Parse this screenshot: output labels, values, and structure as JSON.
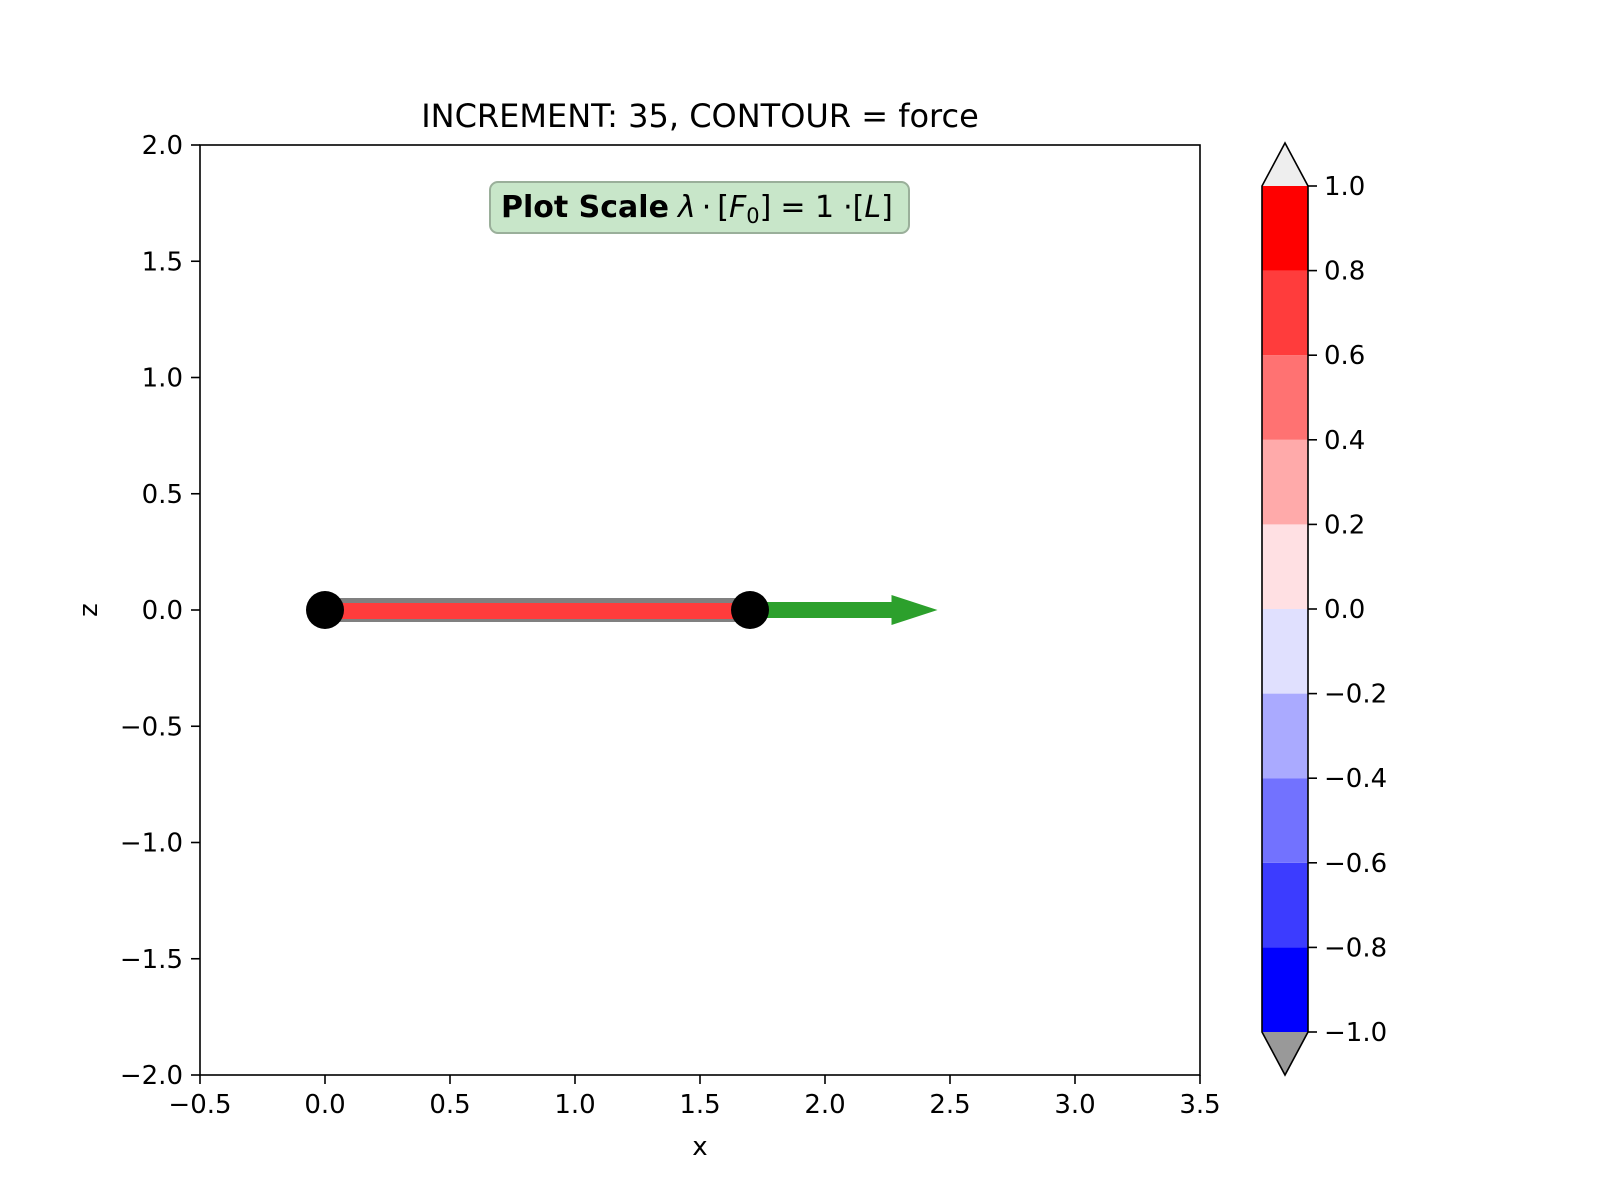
{
  "chart_data": {
    "type": "line",
    "title": "INCREMENT: 35, CONTOUR = force",
    "xlabel": "x",
    "ylabel": "z",
    "xlim": [
      -0.5,
      3.5
    ],
    "ylim": [
      -2.0,
      2.0
    ],
    "x_ticks": [
      -0.5,
      0.0,
      0.5,
      1.0,
      1.5,
      2.0,
      2.5,
      3.0,
      3.5
    ],
    "x_tick_labels": [
      "−0.5",
      "0.0",
      "0.5",
      "1.0",
      "1.5",
      "2.0",
      "2.5",
      "3.0",
      "3.5"
    ],
    "y_ticks": [
      2.0,
      1.5,
      1.0,
      0.5,
      0.0,
      -0.5,
      -1.0,
      -1.5,
      -2.0
    ],
    "y_tick_labels": [
      "2.0",
      "1.5",
      "1.0",
      "0.5",
      "0.0",
      "−0.5",
      "−1.0",
      "−1.5",
      "−2.0"
    ],
    "grid": false,
    "annotation": {
      "bold": "Plot Scale",
      "lambda": "λ",
      "dot": "·",
      "F": "F",
      "sub": "0",
      "eq": "= 1",
      "L": "L",
      "lbracket": "[",
      "rbracket": "]",
      "bg_color": "#c8e6c9",
      "border_color": "#9aaf9a"
    },
    "element": {
      "x": [
        0.0,
        1.7
      ],
      "z": [
        0.0,
        0.0
      ],
      "color": "#ff3c3c",
      "outline_color": "#808080"
    },
    "nodes": [
      {
        "x": 0.0,
        "z": 0.0
      },
      {
        "x": 1.7,
        "z": 0.0
      }
    ],
    "node_color": "#000000",
    "force_arrow": {
      "x_start": 1.7,
      "x_end": 2.45,
      "z": 0.0,
      "color": "#2ca02c"
    },
    "colorbar": {
      "levels": [
        -1.0,
        -0.8,
        -0.6,
        -0.4,
        -0.2,
        0.0,
        0.2,
        0.4,
        0.6,
        0.8,
        1.0
      ],
      "tick_labels": [
        "−1.0",
        "−0.8",
        "−0.6",
        "−0.4",
        "−0.2",
        "0.0",
        "0.2",
        "0.4",
        "0.6",
        "0.8",
        "1.0"
      ],
      "colors": [
        "#0000ff",
        "#3c3cff",
        "#7272ff",
        "#aaaaff",
        "#e0e0fe",
        "#ffe0e3",
        "#ffaaaa",
        "#ff7272",
        "#ff3c3c",
        "#ff0000"
      ],
      "over_color": "#eeeeee",
      "under_color": "#999999"
    }
  }
}
